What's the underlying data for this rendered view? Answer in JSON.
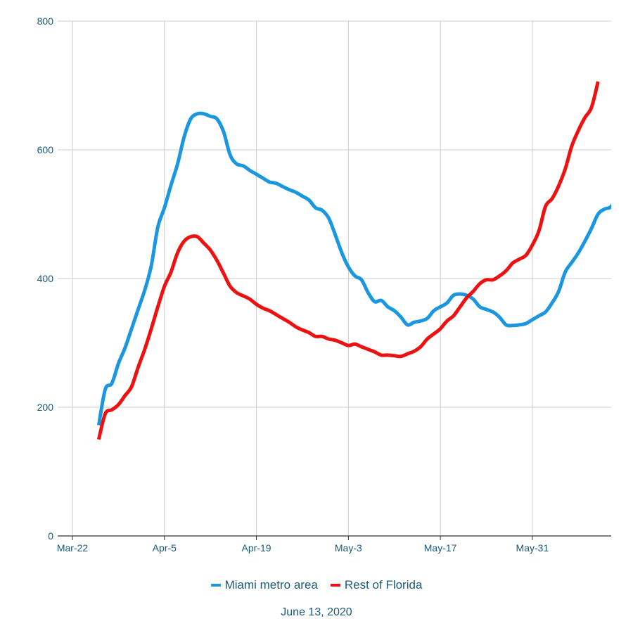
{
  "chart_data": {
    "type": "line",
    "title": "",
    "xlabel": "",
    "ylabel": "",
    "caption": "June 13, 2020",
    "ylim": [
      0,
      800
    ],
    "yticks": [
      0,
      200,
      400,
      600,
      800
    ],
    "xlim": [
      "2020-03-22",
      "2020-06-12"
    ],
    "xticks": [
      {
        "date": "2020-03-22",
        "label": "Mar-22"
      },
      {
        "date": "2020-04-05",
        "label": "Apr-5"
      },
      {
        "date": "2020-04-19",
        "label": "Apr-19"
      },
      {
        "date": "2020-05-03",
        "label": "May-3"
      },
      {
        "date": "2020-05-17",
        "label": "May-17"
      },
      {
        "date": "2020-05-31",
        "label": "May-31"
      }
    ],
    "grid": true,
    "legend_position": "bottom",
    "series": [
      {
        "name": "Miami metro area",
        "color": "#1a97df",
        "points": [
          [
            "2020-03-26",
            172
          ],
          [
            "2020-03-27",
            228
          ],
          [
            "2020-03-28",
            237
          ],
          [
            "2020-03-29",
            268
          ],
          [
            "2020-03-30",
            292
          ],
          [
            "2020-03-31",
            322
          ],
          [
            "2020-04-01",
            352
          ],
          [
            "2020-04-02",
            382
          ],
          [
            "2020-04-03",
            420
          ],
          [
            "2020-04-04",
            480
          ],
          [
            "2020-04-05",
            510
          ],
          [
            "2020-04-06",
            545
          ],
          [
            "2020-04-07",
            578
          ],
          [
            "2020-04-08",
            620
          ],
          [
            "2020-04-09",
            648
          ],
          [
            "2020-04-10",
            656
          ],
          [
            "2020-04-11",
            656
          ],
          [
            "2020-04-12",
            652
          ],
          [
            "2020-04-13",
            648
          ],
          [
            "2020-04-14",
            628
          ],
          [
            "2020-04-15",
            592
          ],
          [
            "2020-04-16",
            578
          ],
          [
            "2020-04-17",
            575
          ],
          [
            "2020-04-18",
            568
          ],
          [
            "2020-04-19",
            562
          ],
          [
            "2020-04-20",
            556
          ],
          [
            "2020-04-21",
            550
          ],
          [
            "2020-04-22",
            548
          ],
          [
            "2020-04-23",
            543
          ],
          [
            "2020-04-24",
            538
          ],
          [
            "2020-04-25",
            534
          ],
          [
            "2020-04-26",
            528
          ],
          [
            "2020-04-27",
            522
          ],
          [
            "2020-04-28",
            510
          ],
          [
            "2020-04-29",
            506
          ],
          [
            "2020-04-30",
            494
          ],
          [
            "2020-05-01",
            468
          ],
          [
            "2020-05-02",
            440
          ],
          [
            "2020-05-03",
            418
          ],
          [
            "2020-05-04",
            404
          ],
          [
            "2020-05-05",
            398
          ],
          [
            "2020-05-06",
            378
          ],
          [
            "2020-05-07",
            364
          ],
          [
            "2020-05-08",
            366
          ],
          [
            "2020-05-09",
            356
          ],
          [
            "2020-05-10",
            350
          ],
          [
            "2020-05-11",
            340
          ],
          [
            "2020-05-12",
            328
          ],
          [
            "2020-05-13",
            332
          ],
          [
            "2020-05-14",
            334
          ],
          [
            "2020-05-15",
            338
          ],
          [
            "2020-05-16",
            350
          ],
          [
            "2020-05-17",
            356
          ],
          [
            "2020-05-18",
            362
          ],
          [
            "2020-05-19",
            374
          ],
          [
            "2020-05-20",
            376
          ],
          [
            "2020-05-21",
            374
          ],
          [
            "2020-05-22",
            368
          ],
          [
            "2020-05-23",
            356
          ],
          [
            "2020-05-24",
            352
          ],
          [
            "2020-05-25",
            348
          ],
          [
            "2020-05-26",
            340
          ],
          [
            "2020-05-27",
            328
          ],
          [
            "2020-05-28",
            327
          ],
          [
            "2020-05-29",
            328
          ],
          [
            "2020-05-30",
            330
          ],
          [
            "2020-05-31",
            336
          ],
          [
            "2020-06-01",
            342
          ],
          [
            "2020-06-02",
            348
          ],
          [
            "2020-06-03",
            362
          ],
          [
            "2020-06-04",
            380
          ],
          [
            "2020-06-05",
            410
          ],
          [
            "2020-06-06",
            425
          ],
          [
            "2020-06-07",
            440
          ],
          [
            "2020-06-08",
            458
          ],
          [
            "2020-06-09",
            478
          ],
          [
            "2020-06-10",
            500
          ],
          [
            "2020-06-11",
            508
          ],
          [
            "2020-06-12",
            512
          ],
          [
            "2020-06-13",
            532
          ]
        ]
      },
      {
        "name": "Rest of Florida",
        "color": "#ee1111",
        "points": [
          [
            "2020-03-26",
            150
          ],
          [
            "2020-03-27",
            190
          ],
          [
            "2020-03-28",
            196
          ],
          [
            "2020-03-29",
            204
          ],
          [
            "2020-03-30",
            218
          ],
          [
            "2020-03-31",
            232
          ],
          [
            "2020-04-01",
            262
          ],
          [
            "2020-04-02",
            290
          ],
          [
            "2020-04-03",
            322
          ],
          [
            "2020-04-04",
            356
          ],
          [
            "2020-04-05",
            388
          ],
          [
            "2020-04-06",
            410
          ],
          [
            "2020-04-07",
            440
          ],
          [
            "2020-04-08",
            458
          ],
          [
            "2020-04-09",
            465
          ],
          [
            "2020-04-10",
            465
          ],
          [
            "2020-04-11",
            455
          ],
          [
            "2020-04-12",
            444
          ],
          [
            "2020-04-13",
            428
          ],
          [
            "2020-04-14",
            408
          ],
          [
            "2020-04-15",
            388
          ],
          [
            "2020-04-16",
            378
          ],
          [
            "2020-04-17",
            373
          ],
          [
            "2020-04-18",
            368
          ],
          [
            "2020-04-19",
            360
          ],
          [
            "2020-04-20",
            354
          ],
          [
            "2020-04-21",
            350
          ],
          [
            "2020-04-22",
            344
          ],
          [
            "2020-04-23",
            338
          ],
          [
            "2020-04-24",
            332
          ],
          [
            "2020-04-25",
            325
          ],
          [
            "2020-04-26",
            320
          ],
          [
            "2020-04-27",
            316
          ],
          [
            "2020-04-28",
            310
          ],
          [
            "2020-04-29",
            310
          ],
          [
            "2020-04-30",
            306
          ],
          [
            "2020-05-01",
            304
          ],
          [
            "2020-05-02",
            300
          ],
          [
            "2020-05-03",
            296
          ],
          [
            "2020-05-04",
            298
          ],
          [
            "2020-05-05",
            294
          ],
          [
            "2020-05-06",
            290
          ],
          [
            "2020-05-07",
            286
          ],
          [
            "2020-05-08",
            281
          ],
          [
            "2020-05-09",
            281
          ],
          [
            "2020-05-10",
            280
          ],
          [
            "2020-05-11",
            279
          ],
          [
            "2020-05-12",
            283
          ],
          [
            "2020-05-13",
            287
          ],
          [
            "2020-05-14",
            294
          ],
          [
            "2020-05-15",
            306
          ],
          [
            "2020-05-16",
            314
          ],
          [
            "2020-05-17",
            322
          ],
          [
            "2020-05-18",
            334
          ],
          [
            "2020-05-19",
            342
          ],
          [
            "2020-05-20",
            356
          ],
          [
            "2020-05-21",
            370
          ],
          [
            "2020-05-22",
            380
          ],
          [
            "2020-05-23",
            392
          ],
          [
            "2020-05-24",
            398
          ],
          [
            "2020-05-25",
            398
          ],
          [
            "2020-05-26",
            404
          ],
          [
            "2020-05-27",
            412
          ],
          [
            "2020-05-28",
            424
          ],
          [
            "2020-05-29",
            430
          ],
          [
            "2020-05-30",
            436
          ],
          [
            "2020-05-31",
            452
          ],
          [
            "2020-06-01",
            474
          ],
          [
            "2020-06-02",
            512
          ],
          [
            "2020-06-03",
            524
          ],
          [
            "2020-06-04",
            544
          ],
          [
            "2020-06-05",
            570
          ],
          [
            "2020-06-06",
            606
          ],
          [
            "2020-06-07",
            630
          ],
          [
            "2020-06-08",
            650
          ],
          [
            "2020-06-09",
            666
          ],
          [
            "2020-06-10",
            706
          ]
        ]
      }
    ]
  }
}
